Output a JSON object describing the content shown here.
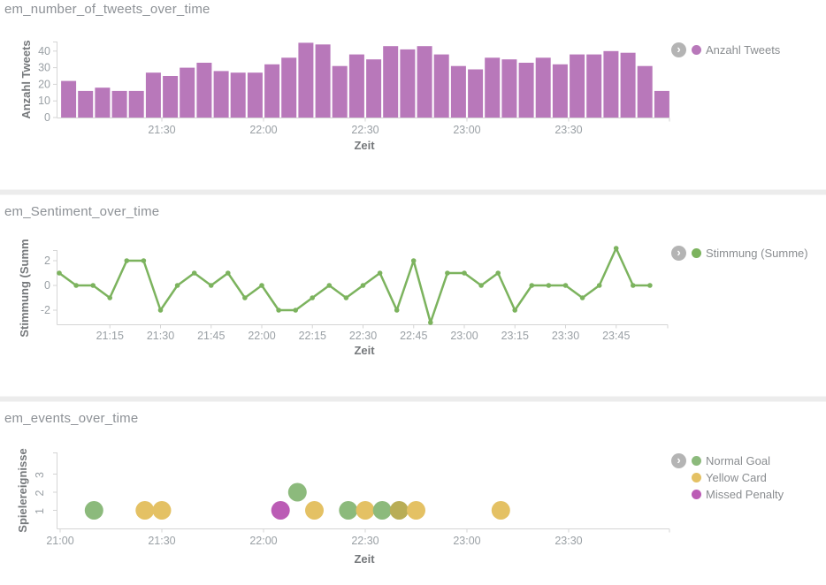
{
  "colors": {
    "bar_purple": "#b878ba",
    "line_green": "#7cb35e",
    "goal_green": "#8cba7c",
    "card_yellow": "#e4c164",
    "penalty_magenta": "#bb5cb5",
    "overlap_olive": "#b9ad56",
    "axis_line": "#d5d5d5",
    "tick_text": "#9aa0a5",
    "axis_label_text": "#75787b",
    "panel_title_text": "#8d9196",
    "legend_text": "#8a8d90",
    "legend_toggle_gray": "#b4b4b4"
  },
  "chart_data": [
    {
      "type": "bar",
      "title": "em_number_of_tweets_over_time",
      "xlabel": "Zeit",
      "ylabel": "Anzahl Tweets",
      "legend": [
        {
          "label": "Anzahl Tweets",
          "color": "#b878ba"
        }
      ],
      "yticks": [
        0,
        10,
        20,
        30,
        40
      ],
      "ylim": [
        0,
        47
      ],
      "xtick_labels": [
        "21:30",
        "22:00",
        "22:30",
        "23:00",
        "23:30"
      ],
      "categories": [
        "21:00",
        "21:05",
        "21:10",
        "21:15",
        "21:20",
        "21:25",
        "21:30",
        "21:35",
        "21:40",
        "21:45",
        "21:50",
        "21:55",
        "22:00",
        "22:05",
        "22:10",
        "22:15",
        "22:20",
        "22:25",
        "22:30",
        "22:35",
        "22:40",
        "22:45",
        "22:50",
        "22:55",
        "23:00",
        "23:05",
        "23:10",
        "23:15",
        "23:20",
        "23:25",
        "23:30",
        "23:35",
        "23:40",
        "23:45",
        "23:50",
        "23:55"
      ],
      "values": [
        22,
        16,
        18,
        16,
        16,
        27,
        25,
        30,
        33,
        28,
        27,
        27,
        32,
        36,
        45,
        44,
        31,
        38,
        35,
        43,
        41,
        43,
        38,
        31,
        29,
        36,
        35,
        33,
        36,
        32,
        38,
        38,
        40,
        39,
        31,
        16
      ]
    },
    {
      "type": "line",
      "title": "em_Sentiment_over_time",
      "xlabel": "Zeit",
      "ylabel": "Stimmung (Summ",
      "legend": [
        {
          "label": "Stimmung (Summe)",
          "color": "#7cb35e"
        }
      ],
      "yticks": [
        2,
        0,
        -2
      ],
      "ylim": [
        -3.2,
        3.2
      ],
      "xtick_labels": [
        "21:15",
        "21:30",
        "21:45",
        "22:00",
        "22:15",
        "22:30",
        "22:45",
        "23:00",
        "23:15",
        "23:30",
        "23:45"
      ],
      "x": [
        "21:00",
        "21:05",
        "21:10",
        "21:15",
        "21:20",
        "21:25",
        "21:30",
        "21:35",
        "21:40",
        "21:45",
        "21:50",
        "21:55",
        "22:00",
        "22:05",
        "22:10",
        "22:15",
        "22:20",
        "22:25",
        "22:30",
        "22:35",
        "22:40",
        "22:45",
        "22:50",
        "22:55",
        "23:00",
        "23:05",
        "23:10",
        "23:15",
        "23:20",
        "23:25",
        "23:30",
        "23:35",
        "23:40",
        "23:45",
        "23:50",
        "23:55"
      ],
      "values": [
        1,
        0,
        0,
        -1,
        2,
        2,
        -2,
        0,
        1,
        0,
        1,
        -1,
        0,
        -2,
        -2,
        -1,
        0,
        -1,
        0,
        1,
        -2,
        2,
        -3,
        1,
        1,
        0,
        1,
        -2,
        0,
        0,
        0,
        -1,
        0,
        3,
        0,
        0
      ]
    },
    {
      "type": "scatter",
      "title": "em_events_over_time",
      "xlabel": "Zeit",
      "ylabel": "Spielereignisse",
      "legend": [
        {
          "label": "Normal Goal",
          "color": "#8cba7c"
        },
        {
          "label": "Yellow Card",
          "color": "#e4c164"
        },
        {
          "label": "Missed Penalty",
          "color": "#bb5cb5"
        }
      ],
      "yticks": [
        1,
        2,
        3
      ],
      "ylim": [
        0,
        4
      ],
      "xtick_labels": [
        "21:00",
        "21:30",
        "22:00",
        "22:30",
        "23:00",
        "23:30"
      ],
      "points": [
        {
          "time": "21:10",
          "value": 1,
          "type": "Normal Goal"
        },
        {
          "time": "21:25",
          "value": 1,
          "type": "Yellow Card"
        },
        {
          "time": "21:30",
          "value": 1,
          "type": "Yellow Card"
        },
        {
          "time": "22:05",
          "value": 1,
          "type": "Missed Penalty"
        },
        {
          "time": "22:10",
          "value": 2,
          "type": "Normal Goal"
        },
        {
          "time": "22:15",
          "value": 1,
          "type": "Yellow Card"
        },
        {
          "time": "22:25",
          "value": 1,
          "type": "Normal Goal"
        },
        {
          "time": "22:30",
          "value": 1,
          "type": "Yellow Card"
        },
        {
          "time": "22:35",
          "value": 1,
          "type": "Normal Goal"
        },
        {
          "time": "22:40",
          "value": 1,
          "type": "Normal Goal + Yellow Card"
        },
        {
          "time": "22:45",
          "value": 1,
          "type": "Yellow Card"
        },
        {
          "time": "23:10",
          "value": 1,
          "type": "Yellow Card"
        }
      ]
    }
  ]
}
